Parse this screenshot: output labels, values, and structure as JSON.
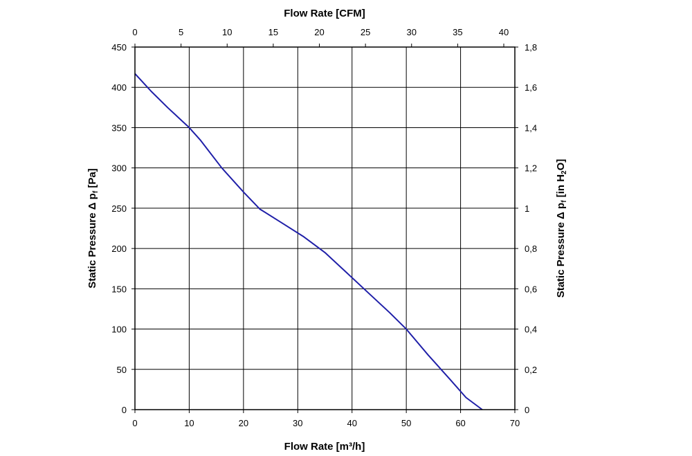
{
  "chart_data": {
    "type": "line",
    "grid": true,
    "legend": "none",
    "line_color": "#1f1fa8",
    "x_bottom": {
      "label": "Flow Rate [m³/h]",
      "lim": [
        0,
        70
      ],
      "ticks": [
        "0",
        "10",
        "20",
        "30",
        "40",
        "50",
        "60",
        "70"
      ]
    },
    "x_top": {
      "label": "Flow Rate [CFM]",
      "lim": [
        0,
        41.2
      ],
      "ticks": [
        "0",
        "5",
        "10",
        "15",
        "20",
        "25",
        "30",
        "35",
        "40"
      ],
      "tick_values": [
        0,
        5,
        10,
        15,
        20,
        25,
        30,
        35,
        40
      ]
    },
    "y_left": {
      "label_main": "Static Pressure Δ p",
      "label_sub": "f",
      "label_tail": " [Pa]",
      "lim": [
        0,
        450
      ],
      "ticks": [
        "0",
        "50",
        "100",
        "150",
        "200",
        "250",
        "300",
        "350",
        "400",
        "450"
      ]
    },
    "y_right": {
      "label_main": "Static Pressure Δ p",
      "label_sub": "f",
      "label_mid": " [in H",
      "label_sub2": "2",
      "label_tail": "O]",
      "lim": [
        0,
        1.8
      ],
      "ticks": [
        "0",
        "0,2",
        "0,4",
        "0,6",
        "0,8",
        "1",
        "1,2",
        "1,4",
        "1,6",
        "1,8"
      ]
    },
    "series": [
      {
        "x": [
          0,
          3,
          6,
          10,
          12,
          16,
          20,
          23,
          27,
          31,
          35,
          39,
          43,
          47,
          50,
          54,
          58,
          61,
          64
        ],
        "y": [
          417,
          395,
          375,
          350,
          335,
          300,
          270,
          249,
          232,
          215,
          195,
          170,
          145,
          120,
          100,
          68,
          38,
          15,
          0
        ]
      }
    ]
  }
}
